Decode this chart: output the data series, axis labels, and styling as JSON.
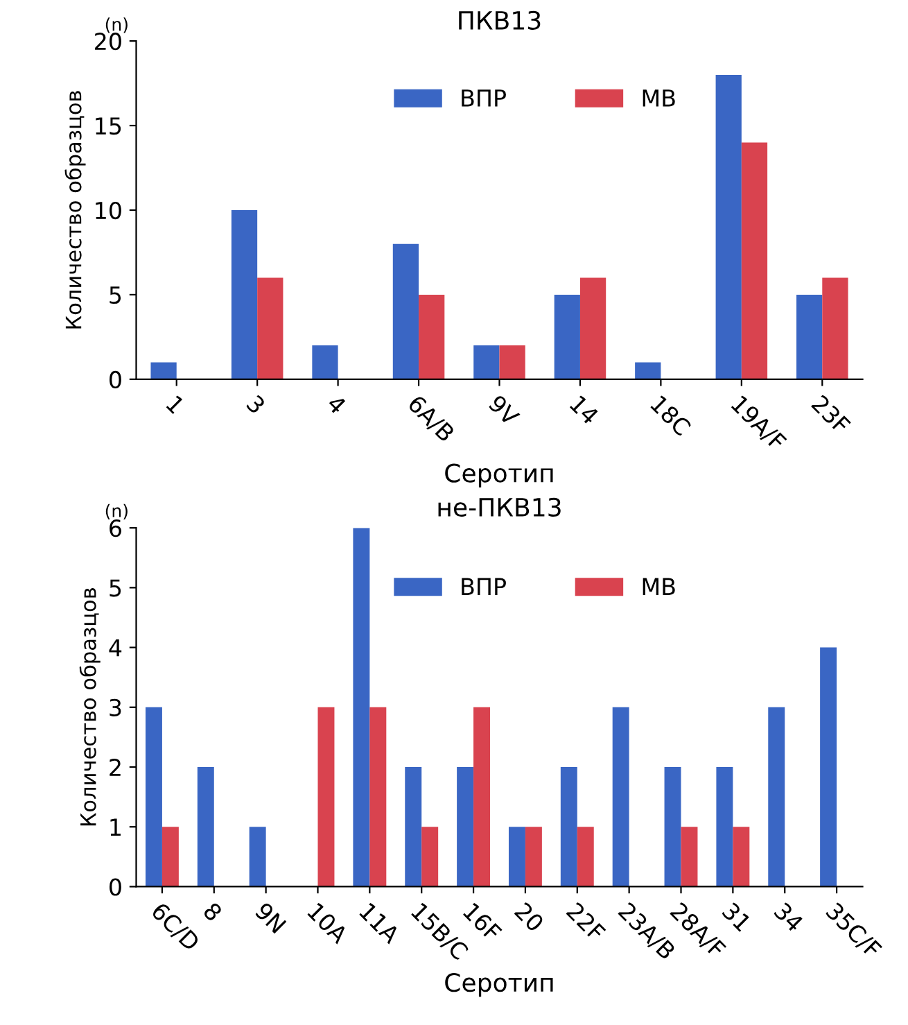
{
  "chart_data": [
    {
      "type": "bar",
      "title": "ПКВ13",
      "xlabel": "Серотип",
      "ylabel": "Количество образцов",
      "annotations": [
        "(n)"
      ],
      "categories": [
        "1",
        "3",
        "4",
        "6A/B",
        "9V",
        "14",
        "18C",
        "19A/F",
        "23F"
      ],
      "series": [
        {
          "name": "ВПР",
          "color": "#3a66c4",
          "values": [
            1,
            10,
            2,
            8,
            2,
            5,
            1,
            18,
            5
          ]
        },
        {
          "name": "МВ",
          "color": "#d9434f",
          "values": [
            0,
            6,
            0,
            5,
            2,
            6,
            0,
            14,
            6
          ]
        }
      ],
      "ylim": [
        0,
        20
      ],
      "yticks": [
        0,
        5,
        10,
        15,
        20
      ],
      "grid": false,
      "legend": "top"
    },
    {
      "type": "bar",
      "title": "не-ПКВ13",
      "xlabel": "Серотип",
      "ylabel": "Количество образцов",
      "annotations": [
        "(n)"
      ],
      "categories": [
        "6C/D",
        "8",
        "9N",
        "10A",
        "11A",
        "15B/C",
        "16F",
        "20",
        "22F",
        "23A/B",
        "28A/F",
        "31",
        "34",
        "35C/F"
      ],
      "series": [
        {
          "name": "ВПР",
          "color": "#3a66c4",
          "values": [
            3,
            2,
            1,
            0,
            6,
            2,
            2,
            1,
            2,
            3,
            2,
            2,
            3,
            4
          ]
        },
        {
          "name": "МВ",
          "color": "#d9434f",
          "values": [
            1,
            0,
            0,
            3,
            3,
            1,
            3,
            1,
            1,
            0,
            1,
            1,
            0,
            0
          ]
        }
      ],
      "ylim": [
        0,
        6
      ],
      "yticks": [
        0,
        1,
        2,
        3,
        4,
        5,
        6
      ],
      "grid": false,
      "legend": "top"
    }
  ]
}
